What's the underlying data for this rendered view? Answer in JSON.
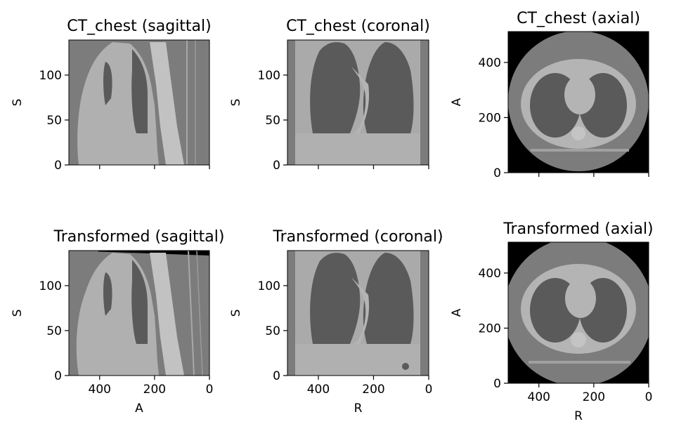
{
  "figure": {
    "background": "#ffffff",
    "colormap": "gray",
    "image_colors": {
      "tissue": "#7c7c7c",
      "bone": "#c4c4c4",
      "soft_tissue": "#b4b4b4",
      "lung": "#5a5a5a",
      "air": "#000000"
    }
  },
  "chart_data": [
    {
      "type": "image",
      "title": "CT_chest (sagittal)",
      "xlabel": "",
      "ylabel": "S",
      "xlim": [
        512,
        0
      ],
      "ylim": [
        0,
        139
      ],
      "xticks": [
        400,
        200,
        0
      ],
      "yticks": [
        0,
        50,
        100
      ],
      "show_xticklabels": false,
      "view": "sagittal"
    },
    {
      "type": "image",
      "title": "CT_chest (coronal)",
      "xlabel": "",
      "ylabel": "S",
      "xlim": [
        512,
        0
      ],
      "ylim": [
        0,
        139
      ],
      "xticks": [
        400,
        200,
        0
      ],
      "yticks": [
        0,
        50,
        100
      ],
      "show_xticklabels": false,
      "view": "coronal"
    },
    {
      "type": "image",
      "title": "CT_chest (axial)",
      "xlabel": "",
      "ylabel": "A",
      "xlim": [
        512,
        0
      ],
      "ylim": [
        0,
        512
      ],
      "xticks": [
        400,
        200,
        0
      ],
      "yticks": [
        0,
        200,
        400
      ],
      "show_xticklabels": false,
      "view": "axial"
    },
    {
      "type": "image",
      "title": "Transformed (sagittal)",
      "xlabel": "A",
      "ylabel": "S",
      "xlim": [
        512,
        0
      ],
      "ylim": [
        0,
        139
      ],
      "xticks": [
        400,
        200,
        0
      ],
      "yticks": [
        0,
        50,
        100
      ],
      "show_xticklabels": true,
      "view": "sagittal"
    },
    {
      "type": "image",
      "title": "Transformed (coronal)",
      "xlabel": "R",
      "ylabel": "S",
      "xlim": [
        512,
        0
      ],
      "ylim": [
        0,
        139
      ],
      "xticks": [
        400,
        200,
        0
      ],
      "yticks": [
        0,
        50,
        100
      ],
      "show_xticklabels": true,
      "view": "coronal"
    },
    {
      "type": "image",
      "title": "Transformed (axial)",
      "xlabel": "R",
      "ylabel": "A",
      "xlim": [
        512,
        0
      ],
      "ylim": [
        0,
        512
      ],
      "xticks": [
        400,
        200,
        0
      ],
      "yticks": [
        0,
        200,
        400
      ],
      "show_xticklabels": true,
      "view": "axial"
    }
  ]
}
